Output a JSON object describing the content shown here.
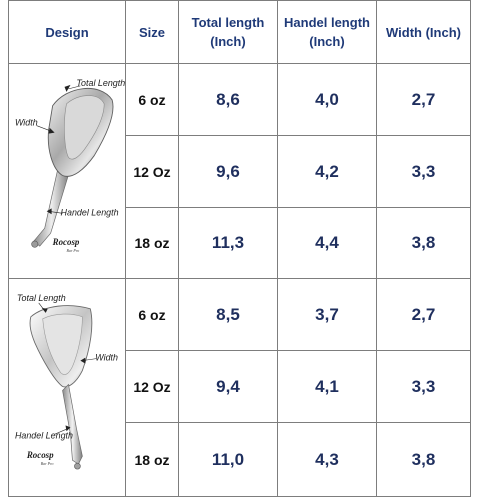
{
  "headers": {
    "design": "Design",
    "size": "Size",
    "total_length": "Total length (Inch)",
    "handle_length": "Handel length (Inch)",
    "width": "Width (Inch)"
  },
  "groups": [
    {
      "illustration_labels": {
        "total_length": "Total Length",
        "width": "Width",
        "handle_length": "Handel Length"
      },
      "brand": "Rocosp",
      "brand_sub": "Bar Pro",
      "rows": [
        {
          "size": "6 oz",
          "total_length": "8,6",
          "handle_length": "4,0",
          "width": "2,7"
        },
        {
          "size": "12 Oz",
          "total_length": "9,6",
          "handle_length": "4,2",
          "width": "3,3"
        },
        {
          "size": "18 oz",
          "total_length": "11,3",
          "handle_length": "4,4",
          "width": "3,8"
        }
      ]
    },
    {
      "illustration_labels": {
        "total_length": "Total Length",
        "width": "Width",
        "handle_length": "Handel Length"
      },
      "brand": "Rocosp",
      "brand_sub": "Bar Pro",
      "rows": [
        {
          "size": "6 oz",
          "total_length": "8,5",
          "handle_length": "3,7",
          "width": "2,7"
        },
        {
          "size": "12 Oz",
          "total_length": "9,4",
          "handle_length": "4,1",
          "width": "3,3"
        },
        {
          "size": "18 oz",
          "total_length": "11,0",
          "handle_length": "4,3",
          "width": "3,8"
        }
      ]
    }
  ],
  "colors": {
    "header_text": "#1f3a78",
    "value_text": "#1f2f5e",
    "grid": "#7d7d7d"
  }
}
